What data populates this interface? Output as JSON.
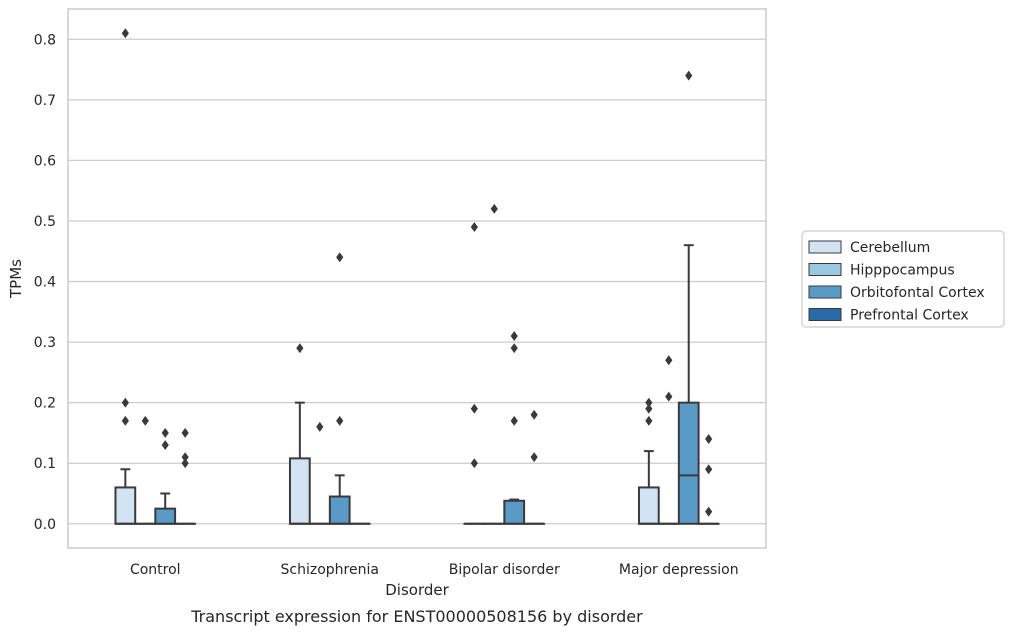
{
  "chart_data": {
    "type": "box",
    "xlabel": "Disorder",
    "ylabel": "TPMs",
    "caption": "Transcript expression for ENST00000508156 by disorder",
    "categories": [
      "Control",
      "Schizophrenia",
      "Bipolar disorder",
      "Major depression"
    ],
    "ylim": [
      -0.04,
      0.85
    ],
    "yticks": [
      0.0,
      0.1,
      0.2,
      0.3,
      0.4,
      0.5,
      0.6,
      0.7,
      0.8
    ],
    "ytick_labels": [
      "0.0",
      "0.1",
      "0.2",
      "0.3",
      "0.4",
      "0.5",
      "0.6",
      "0.7",
      "0.8"
    ],
    "grid": "horizontal",
    "legend_position": "right",
    "series": [
      {
        "name": "Cerebellum",
        "color": "#d2e3f3",
        "boxes": [
          {
            "q1": 0.0,
            "median": 0.0,
            "q3": 0.06,
            "whisker_low": 0.0,
            "whisker_high": 0.09,
            "outliers": [
              0.17,
              0.2,
              0.81
            ]
          },
          {
            "q1": 0.0,
            "median": 0.0,
            "q3": 0.108,
            "whisker_low": 0.0,
            "whisker_high": 0.2,
            "outliers": [
              0.29
            ]
          },
          {
            "q1": 0.0,
            "median": 0.0,
            "q3": 0.0,
            "whisker_low": 0.0,
            "whisker_high": 0.0,
            "outliers": [
              0.1,
              0.19,
              0.49
            ]
          },
          {
            "q1": 0.0,
            "median": 0.0,
            "q3": 0.06,
            "whisker_low": 0.0,
            "whisker_high": 0.12,
            "outliers": [
              0.17,
              0.19,
              0.2
            ]
          }
        ]
      },
      {
        "name": "Hipppocampus",
        "color": "#9ac8e0",
        "boxes": [
          {
            "q1": 0.0,
            "median": 0.0,
            "q3": 0.0,
            "whisker_low": 0.0,
            "whisker_high": 0.0,
            "outliers": [
              0.17
            ]
          },
          {
            "q1": 0.0,
            "median": 0.0,
            "q3": 0.0,
            "whisker_low": 0.0,
            "whisker_high": 0.0,
            "outliers": [
              0.16
            ]
          },
          {
            "q1": 0.0,
            "median": 0.0,
            "q3": 0.0,
            "whisker_low": 0.0,
            "whisker_high": 0.0,
            "outliers": [
              0.52
            ]
          },
          {
            "q1": 0.0,
            "median": 0.0,
            "q3": 0.0,
            "whisker_low": 0.0,
            "whisker_high": 0.0,
            "outliers": [
              0.21,
              0.27
            ]
          }
        ]
      },
      {
        "name": "Orbitofontal Cortex",
        "color": "#5a9ac6",
        "boxes": [
          {
            "q1": 0.0,
            "median": 0.0,
            "q3": 0.025,
            "whisker_low": 0.0,
            "whisker_high": 0.05,
            "outliers": [
              0.13,
              0.15
            ]
          },
          {
            "q1": 0.0,
            "median": 0.0,
            "q3": 0.045,
            "whisker_low": 0.0,
            "whisker_high": 0.08,
            "outliers": [
              0.17,
              0.44
            ]
          },
          {
            "q1": 0.0,
            "median": 0.0,
            "q3": 0.038,
            "whisker_low": 0.0,
            "whisker_high": 0.04,
            "outliers": [
              0.17,
              0.29,
              0.31
            ]
          },
          {
            "q1": 0.0,
            "median": 0.08,
            "q3": 0.2,
            "whisker_low": 0.0,
            "whisker_high": 0.46,
            "outliers": [
              0.74
            ]
          }
        ]
      },
      {
        "name": "Prefrontal Cortex",
        "color": "#2a6aa8",
        "boxes": [
          {
            "q1": 0.0,
            "median": 0.0,
            "q3": 0.0,
            "whisker_low": 0.0,
            "whisker_high": 0.0,
            "outliers": [
              0.1,
              0.11,
              0.15
            ]
          },
          {
            "q1": 0.0,
            "median": 0.0,
            "q3": 0.0,
            "whisker_low": 0.0,
            "whisker_high": 0.0,
            "outliers": []
          },
          {
            "q1": 0.0,
            "median": 0.0,
            "q3": 0.0,
            "whisker_low": 0.0,
            "whisker_high": 0.0,
            "outliers": [
              0.11,
              0.18
            ]
          },
          {
            "q1": 0.0,
            "median": 0.0,
            "q3": 0.0,
            "whisker_low": 0.0,
            "whisker_high": 0.0,
            "outliers": [
              0.02,
              0.09,
              0.14
            ]
          }
        ]
      }
    ]
  }
}
